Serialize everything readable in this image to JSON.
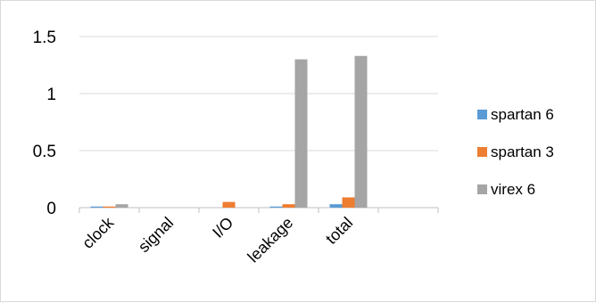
{
  "chart_data": {
    "type": "bar",
    "categories": [
      "clock",
      "signal",
      "I/O",
      "leakage",
      "total",
      ""
    ],
    "series": [
      {
        "name": "spartan 6",
        "color": "#5b9bd5",
        "values": [
          0.01,
          0,
          0,
          0.01,
          0.03,
          0
        ]
      },
      {
        "name": "spartan 3",
        "color": "#ed7d31",
        "values": [
          0.01,
          0,
          0.05,
          0.03,
          0.09,
          0
        ]
      },
      {
        "name": "virex 6",
        "color": "#a5a5a5",
        "values": [
          0.03,
          0,
          0,
          1.3,
          1.33,
          0
        ]
      }
    ],
    "yticks": [
      "0",
      "0.5",
      "1",
      "1.5"
    ],
    "ylim": [
      0,
      1.5
    ],
    "legend_position": "right",
    "grid": true,
    "gridline_color": "#d9d9d9",
    "axis_color": "#bfbfbf"
  }
}
